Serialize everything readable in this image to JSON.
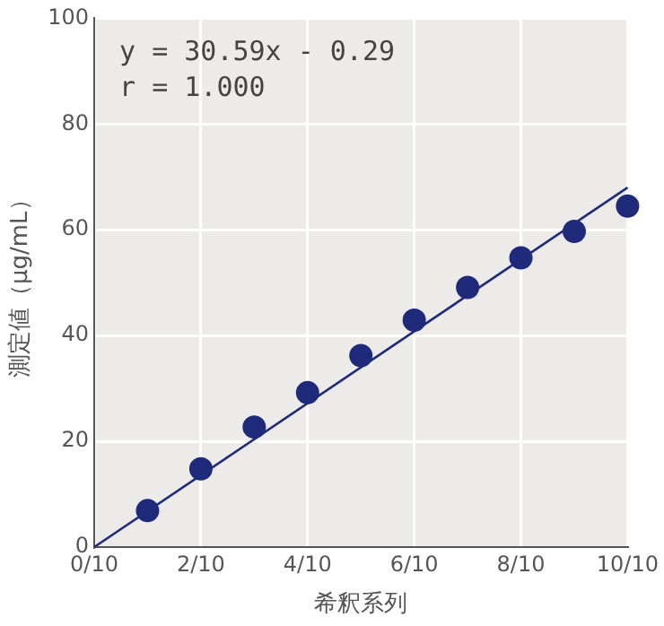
{
  "chart_data": {
    "type": "scatter",
    "xlabel": "希釈系列",
    "ylabel": "測定値（μg/mL）",
    "x": [
      0.1,
      0.2,
      0.3,
      0.4,
      0.5,
      0.6,
      0.7,
      0.8,
      0.9,
      1.0
    ],
    "series": [
      {
        "color": "#1f2a7a",
        "marker": "circle",
        "values": [
          6.9,
          14.8,
          22.7,
          29.2,
          36.2,
          42.9,
          49.1,
          54.7,
          59.7,
          64.5
        ]
      },
      {
        "type": "line",
        "color": "#1f2a7a",
        "marker": "none",
        "x": [
          0,
          1.0
        ],
        "values": [
          0,
          68
        ]
      }
    ],
    "xlim": [
      0,
      1
    ],
    "xticks": [
      {
        "value": 0,
        "label": "0/10"
      },
      {
        "value": 0.2,
        "label": "2/10"
      },
      {
        "value": 0.4,
        "label": "4/10"
      },
      {
        "value": 0.6,
        "label": "6/10"
      },
      {
        "value": 0.8,
        "label": "8/10"
      },
      {
        "value": 1,
        "label": "10/10"
      }
    ],
    "ylim": [
      0,
      100
    ],
    "yticks": [
      0,
      20,
      40,
      60,
      80,
      100
    ],
    "grid": true,
    "annotations": [
      "y = 30.59x - 0.29",
      "r = 1.000"
    ]
  }
}
